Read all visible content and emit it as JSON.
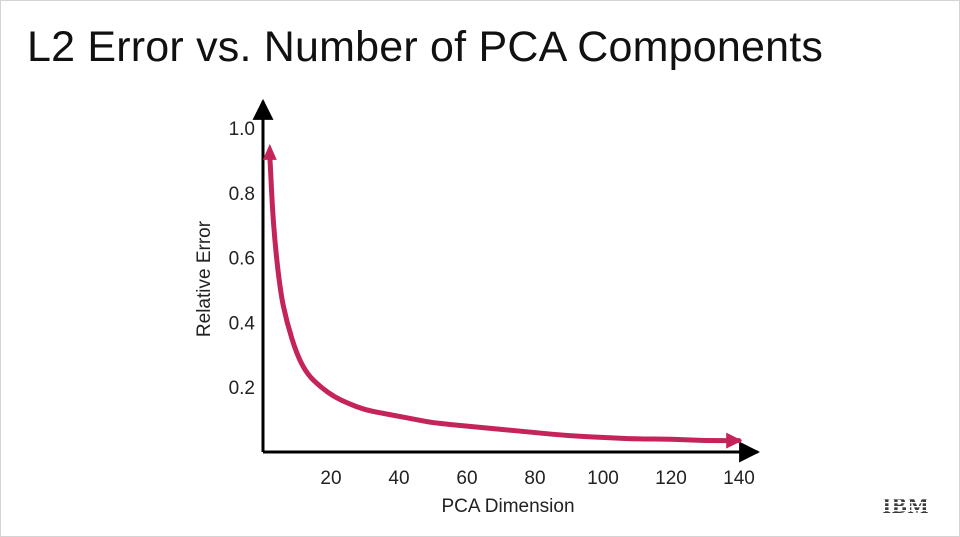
{
  "slide": {
    "title": "L2 Error vs. Number of PCA Components",
    "logo_text": "IBM"
  },
  "chart_data": {
    "type": "line",
    "title": "",
    "xlabel": "PCA Dimension",
    "ylabel": "Relative Error",
    "xlim": [
      0,
      145
    ],
    "ylim": [
      0,
      1.0
    ],
    "x_ticks": [
      20,
      40,
      60,
      80,
      100,
      120,
      140
    ],
    "y_ticks": [
      0.2,
      0.4,
      0.6,
      0.8,
      1.0
    ],
    "x_tick_labels": [
      "20",
      "40",
      "60",
      "80",
      100,
      "120",
      "140"
    ],
    "y_tick_labels": [
      "0.2",
      "0.4",
      "0.6",
      "0.8",
      "1.0"
    ],
    "grid": false,
    "legend": "none",
    "line_color": "#C4245A",
    "axis_color": "#000000",
    "series": [
      {
        "x": [
          2,
          3,
          5,
          7,
          10,
          13,
          17,
          21,
          25,
          30,
          35,
          40,
          45,
          50,
          60,
          70,
          80,
          90,
          100,
          110,
          120,
          130,
          140
        ],
        "y": [
          0.92,
          0.7,
          0.5,
          0.4,
          0.3,
          0.24,
          0.2,
          0.17,
          0.15,
          0.13,
          0.12,
          0.11,
          0.1,
          0.09,
          0.08,
          0.07,
          0.06,
          0.05,
          0.045,
          0.04,
          0.04,
          0.035,
          0.035
        ]
      }
    ]
  }
}
